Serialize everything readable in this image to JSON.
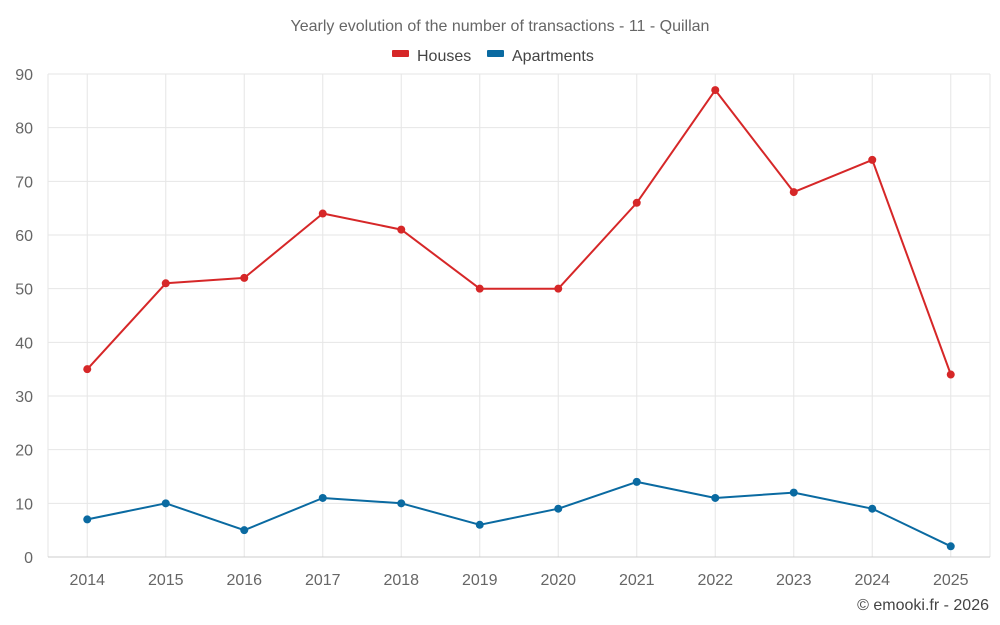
{
  "chart_data": {
    "type": "line",
    "title": "Yearly evolution of the number of transactions - 11 - Quillan",
    "xlabel": "",
    "ylabel": "",
    "categories": [
      "2014",
      "2015",
      "2016",
      "2017",
      "2018",
      "2019",
      "2020",
      "2021",
      "2022",
      "2023",
      "2024",
      "2025"
    ],
    "ylim": [
      0,
      90
    ],
    "yticks": [
      0,
      10,
      20,
      30,
      40,
      50,
      60,
      70,
      80,
      90
    ],
    "grid": true,
    "legend_position": "top-center",
    "series": [
      {
        "name": "Houses",
        "color": "#d62728",
        "values": [
          35,
          51,
          52,
          64,
          61,
          50,
          50,
          66,
          87,
          68,
          74,
          34
        ]
      },
      {
        "name": "Apartments",
        "color": "#0a6aa1",
        "values": [
          7,
          10,
          5,
          11,
          10,
          6,
          9,
          14,
          11,
          12,
          9,
          2
        ]
      }
    ],
    "credit": "© emooki.fr - 2026"
  }
}
